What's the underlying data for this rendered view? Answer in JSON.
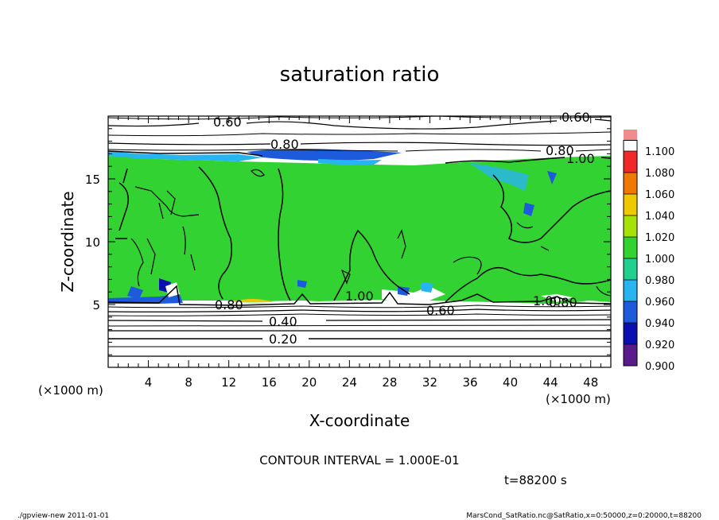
{
  "chart_data": {
    "type": "heatmap",
    "title": "saturation ratio",
    "xlabel": "X-coordinate",
    "ylabel": "Z-coordinate",
    "x_unit": "(×1000 m)",
    "y_unit": "(×1000 m)",
    "xlim": [
      0,
      50
    ],
    "ylim": [
      0,
      20
    ],
    "x_ticks": [
      "4",
      "8",
      "12",
      "16",
      "20",
      "24",
      "28",
      "32",
      "36",
      "40",
      "44",
      "48"
    ],
    "y_ticks": [
      "5",
      "10",
      "15"
    ],
    "colorbar": {
      "levels": [
        "0.900",
        "0.920",
        "0.940",
        "0.960",
        "0.980",
        "1.000",
        "1.020",
        "1.040",
        "1.060",
        "1.080",
        "1.100"
      ],
      "colors": [
        "#5a1a8c",
        "#0a10b0",
        "#1e5adc",
        "#28b4f0",
        "#20d08c",
        "#32d232",
        "#a6e20a",
        "#f0c800",
        "#f07800",
        "#f02828",
        "#f08c8c"
      ]
    },
    "contour_labels": [
      "0.60",
      "0.60",
      "0.80",
      "0.80",
      "1.00",
      "1.00",
      "1.00",
      "0.60",
      "0.80",
      "0.80",
      "0.40",
      "0.20"
    ],
    "contour_interval_text": "CONTOUR INTERVAL = 1.000E-01",
    "time_text": "t=88200 s"
  },
  "footer": {
    "left": "./gpview-new   2011-01-01",
    "right": "MarsCond_SatRatio.nc@SatRatio,x=0:50000,z=0:20000,t=88200"
  }
}
